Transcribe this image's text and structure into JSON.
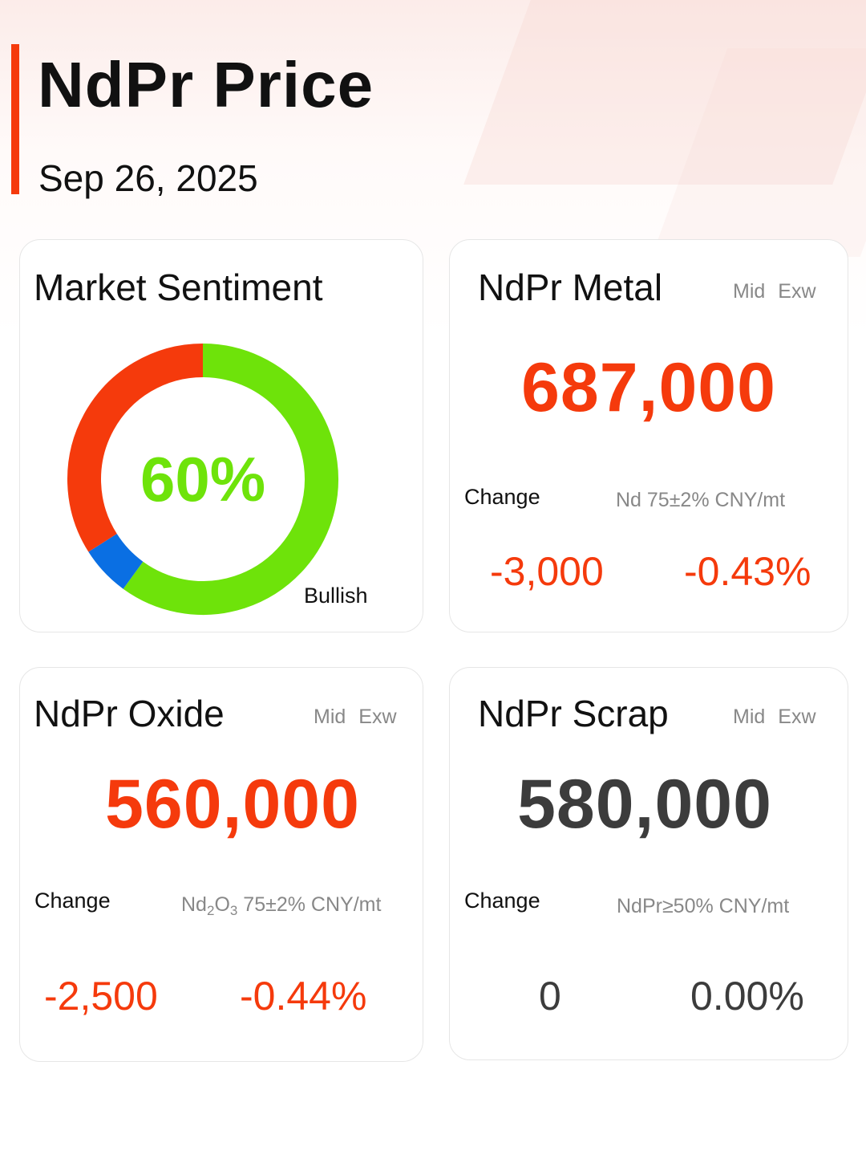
{
  "header": {
    "title": "NdPr Price",
    "date": "Sep 26, 2025"
  },
  "colors": {
    "accent": "#f53a0c",
    "up_red": "#f53a0c",
    "neutral": "#3c3c3c",
    "bullish_green": "#6ee30a",
    "bearish_red": "#f53a0c",
    "neutral_blue": "#0a6fe3"
  },
  "sentiment": {
    "title": "Market Sentiment",
    "percent_label": "60%",
    "bullish_label": "Bullish",
    "segments": [
      {
        "name": "bullish",
        "value": 60,
        "color": "#6ee30a"
      },
      {
        "name": "neutral",
        "value": 6,
        "color": "#0a6fe3"
      },
      {
        "name": "bearish",
        "value": 34,
        "color": "#f53a0c"
      }
    ]
  },
  "metal": {
    "title": "NdPr Metal",
    "mode_1": "Mid",
    "mode_2": "Exw",
    "price": "687,000",
    "change_label": "Change",
    "spec": "Nd 75±2% CNY/mt",
    "change_abs": "-3,000",
    "change_pct": "-0.43%"
  },
  "oxide": {
    "title": "NdPr Oxide",
    "mode_1": "Mid",
    "mode_2": "Exw",
    "price": "560,000",
    "change_label": "Change",
    "spec_base": "Nd",
    "spec_sub1": "2",
    "spec_mid": "O",
    "spec_sub2": "3",
    "spec_rest": " 75±2% CNY/mt",
    "change_abs": "-2,500",
    "change_pct": "-0.44%"
  },
  "scrap": {
    "title": "NdPr Scrap",
    "mode_1": "Mid",
    "mode_2": "Exw",
    "price": "580,000",
    "change_label": "Change",
    "spec": "NdPr≥50% CNY/mt",
    "change_abs": "0",
    "change_pct": "0.00%"
  }
}
